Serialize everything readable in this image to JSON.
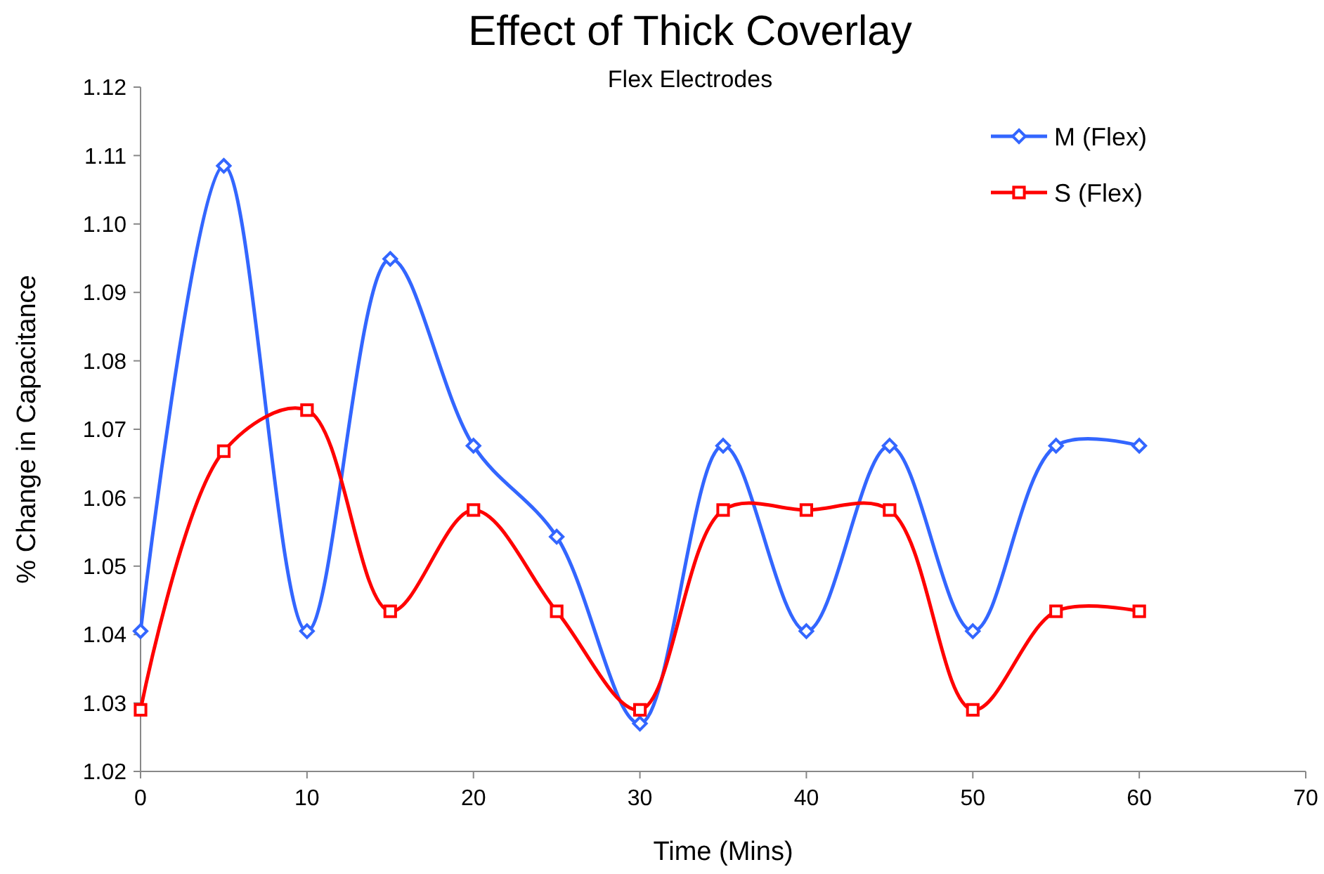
{
  "chart_data": {
    "type": "line",
    "title": "Effect of Thick Coverlay",
    "subtitle": "Flex Electrodes",
    "xlabel": "Time (Mins)",
    "ylabel": "% Change in Capacitance",
    "x": [
      0,
      5,
      10,
      15,
      20,
      25,
      30,
      35,
      40,
      45,
      50,
      55,
      60
    ],
    "series": [
      {
        "name": "M (Flex)",
        "color": "#3366ff",
        "marker": "diamond",
        "values": [
          1.0405,
          1.1085,
          1.0405,
          1.0949,
          1.0676,
          1.0543,
          1.027,
          1.0676,
          1.0405,
          1.0676,
          1.0405,
          1.0676,
          1.0676
        ]
      },
      {
        "name": "S (Flex)",
        "color": "#ff0000",
        "marker": "square",
        "values": [
          1.029,
          1.0668,
          1.0728,
          1.0434,
          1.0582,
          1.0434,
          1.029,
          1.0582,
          1.0582,
          1.0582,
          1.029,
          1.0434,
          1.0434
        ]
      }
    ],
    "xlim": [
      0,
      70
    ],
    "xticks": [
      0,
      10,
      20,
      30,
      40,
      50,
      60,
      70
    ],
    "ylim": [
      1.02,
      1.12
    ],
    "yticks": [
      1.02,
      1.03,
      1.04,
      1.05,
      1.06,
      1.07,
      1.08,
      1.09,
      {
        "value": 1.1,
        "label": "1.10"
      },
      1.11,
      1.12
    ],
    "grid": false,
    "legend": "top right",
    "line_style": "solid"
  }
}
